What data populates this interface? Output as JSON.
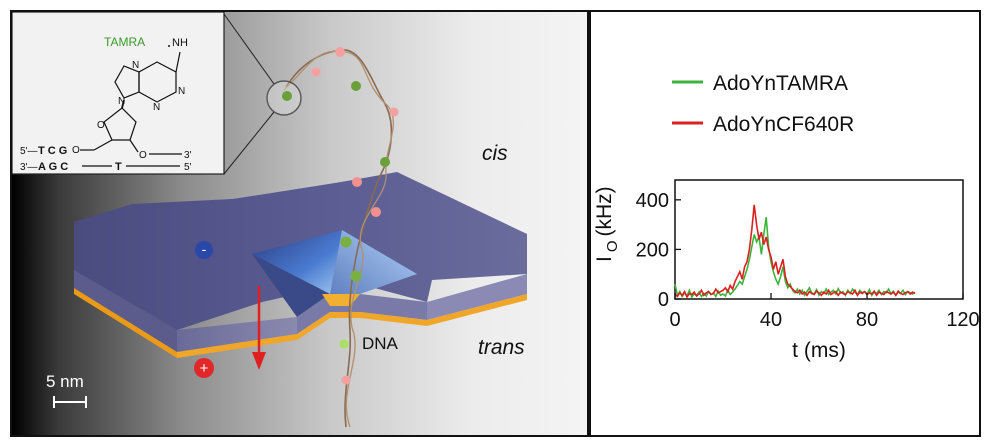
{
  "diagram": {
    "inset": {
      "label_tamra": "TAMRA",
      "label_nh": "NH",
      "label_n1": "N",
      "label_n2": "N",
      "label_n3": "N",
      "label_n4": "N",
      "label_o1": "O",
      "label_o2": "O",
      "label_o3": "O",
      "strand_top_5": "5'—",
      "strand_top_seq": "T C G",
      "strand_top_3": "3'",
      "strand_bottom_3": "3'—",
      "strand_bottom_seq": "A G C",
      "strand_bottom_t": "T",
      "strand_bottom_5": "5'"
    },
    "labels": {
      "cis": "cis",
      "trans": "trans",
      "dna": "DNA",
      "minus": "-",
      "plus": "+",
      "scale": "5 nm"
    },
    "colors": {
      "membrane_top": "#5a5c8f",
      "membrane_side": "#7878a4",
      "metal_layer": "#f0a020",
      "field_arrow": "#e02020",
      "tamra_dot": "#6aa03a",
      "cf640_dot": "#f08080",
      "dna_strand": "#8a6a50",
      "minus_circle": "#2a48a8",
      "plus_circle": "#e02828"
    }
  },
  "chart_data": {
    "type": "line",
    "xlabel": "t (ms)",
    "ylabel": "I",
    "ylabel_sub": "O",
    "ylabel_unit": "(kHz)",
    "xlim": [
      0,
      120
    ],
    "ylim": [
      0,
      480
    ],
    "xticks": [
      "0",
      "40",
      "80",
      "120"
    ],
    "yticks": [
      "0",
      "200",
      "400"
    ],
    "legend_position": "top",
    "series": [
      {
        "name": "AdoYnTAMRA",
        "color": "#3cb43c",
        "x": [
          0,
          1,
          2,
          3,
          4,
          5,
          6,
          7,
          8,
          9,
          10,
          11,
          12,
          13,
          14,
          15,
          16,
          17,
          18,
          19,
          20,
          21,
          22,
          23,
          24,
          25,
          26,
          27,
          28,
          29,
          30,
          31,
          32,
          33,
          34,
          35,
          36,
          37,
          38,
          39,
          40,
          41,
          42,
          43,
          44,
          45,
          46,
          47,
          48,
          49,
          50,
          51,
          52,
          53,
          54,
          55,
          56,
          57,
          58,
          59,
          60,
          61,
          62,
          63,
          64,
          65,
          66,
          67,
          68,
          69,
          70,
          71,
          72,
          73,
          74,
          75,
          76,
          77,
          78,
          79,
          80,
          81,
          82,
          83,
          84,
          85,
          86,
          87,
          88,
          89,
          90,
          91,
          92,
          93,
          94,
          95,
          96,
          97,
          98,
          99,
          100
        ],
        "y": [
          60,
          15,
          30,
          10,
          25,
          12,
          35,
          8,
          20,
          15,
          28,
          10,
          22,
          12,
          30,
          18,
          25,
          10,
          32,
          15,
          20,
          12,
          35,
          18,
          28,
          40,
          55,
          70,
          60,
          90,
          120,
          160,
          210,
          260,
          230,
          250,
          180,
          260,
          330,
          210,
          150,
          110,
          80,
          60,
          90,
          130,
          70,
          45,
          60,
          35,
          25,
          40,
          20,
          35,
          15,
          30,
          45,
          25,
          20,
          38,
          15,
          30,
          22,
          40,
          18,
          28,
          35,
          20,
          42,
          25,
          30,
          15,
          35,
          22,
          40,
          28,
          18,
          35,
          25,
          30,
          20,
          38,
          15,
          28,
          22,
          35,
          18,
          30,
          25,
          40,
          20,
          32,
          15,
          28,
          22,
          35,
          18,
          30,
          25,
          20,
          28
        ]
      },
      {
        "name": "AdoYnCF640R",
        "color": "#dc2020",
        "x": [
          0,
          1,
          2,
          3,
          4,
          5,
          6,
          7,
          8,
          9,
          10,
          11,
          12,
          13,
          14,
          15,
          16,
          17,
          18,
          19,
          20,
          21,
          22,
          23,
          24,
          25,
          26,
          27,
          28,
          29,
          30,
          31,
          32,
          33,
          34,
          35,
          36,
          37,
          38,
          39,
          40,
          41,
          42,
          43,
          44,
          45,
          46,
          47,
          48,
          49,
          50,
          51,
          52,
          53,
          54,
          55,
          56,
          57,
          58,
          59,
          60,
          61,
          62,
          63,
          64,
          65,
          66,
          67,
          68,
          69,
          70,
          71,
          72,
          73,
          74,
          75,
          76,
          77,
          78,
          79,
          80,
          81,
          82,
          83,
          84,
          85,
          86,
          87,
          88,
          89,
          90,
          91,
          92,
          93,
          94,
          95,
          96,
          97,
          98,
          99,
          100
        ],
        "y": [
          20,
          10,
          25,
          15,
          30,
          8,
          22,
          18,
          28,
          12,
          20,
          35,
          15,
          25,
          30,
          18,
          22,
          40,
          25,
          30,
          35,
          45,
          30,
          55,
          40,
          70,
          90,
          110,
          80,
          130,
          150,
          200,
          280,
          380,
          300,
          240,
          270,
          220,
          250,
          200,
          170,
          120,
          150,
          100,
          130,
          160,
          90,
          60,
          50,
          40,
          30,
          25,
          35,
          20,
          28,
          15,
          30,
          22,
          18,
          32,
          25,
          15,
          28,
          20,
          35,
          18,
          25,
          30,
          15,
          28,
          22,
          18,
          30,
          25,
          20,
          35,
          15,
          28,
          22,
          30,
          18,
          25,
          20,
          32,
          15,
          28,
          22,
          18,
          30,
          25,
          20,
          28,
          15,
          32,
          22,
          18,
          25,
          30,
          20,
          28,
          22
        ]
      }
    ]
  }
}
